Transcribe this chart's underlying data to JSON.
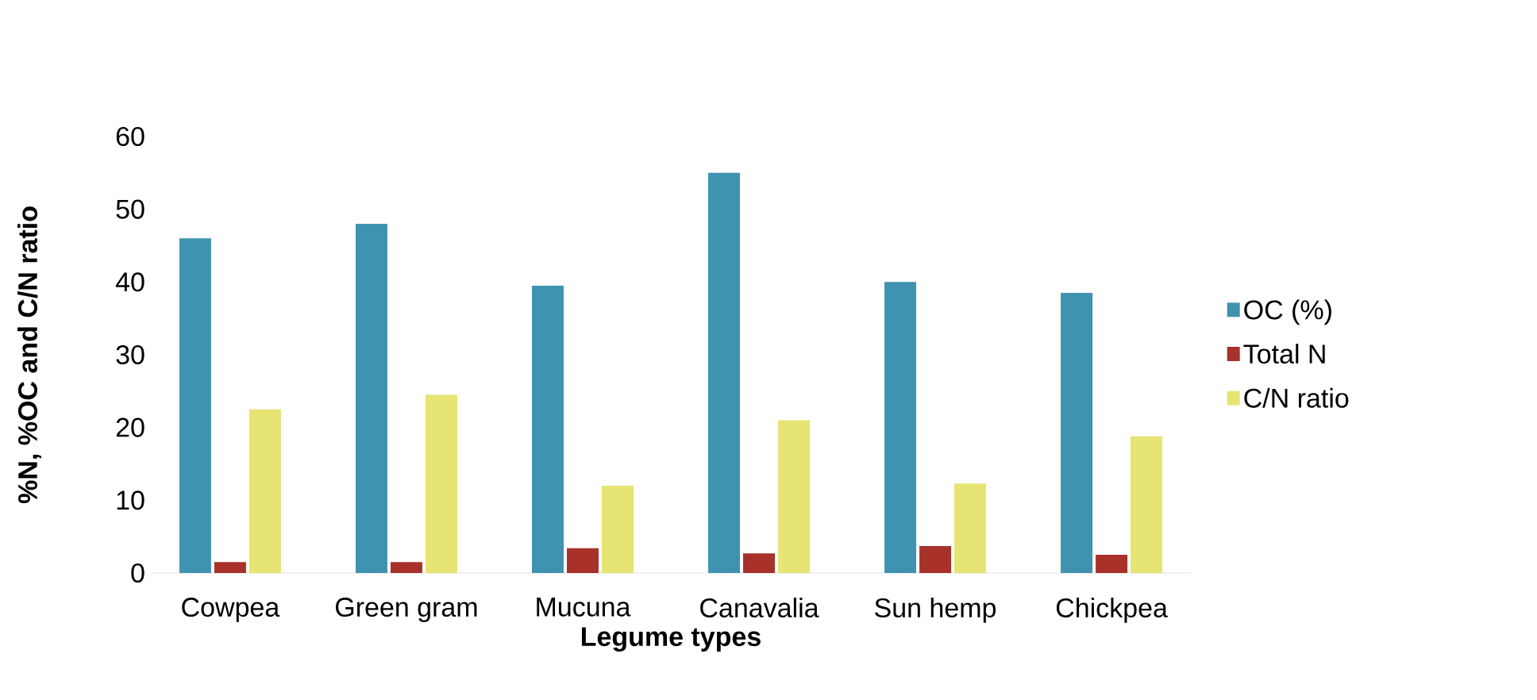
{
  "chart_data": {
    "type": "bar",
    "xlabel": "Legume types",
    "ylabel": "%N, %OC and C/N ratio",
    "categories": [
      "Cowpea",
      "Green gram",
      "Mucuna",
      "Canavalia",
      "Sun hemp",
      "Chickpea"
    ],
    "series": [
      {
        "name": "OC (%)",
        "color": "#3f93b0",
        "values": [
          46,
          48,
          39.5,
          55,
          40,
          38.5
        ]
      },
      {
        "name": "Total N",
        "color": "#a8322a",
        "values": [
          1.5,
          1.5,
          3.4,
          2.7,
          3.7,
          2.5
        ]
      },
      {
        "name": "C/N ratio",
        "color": "#e6e472",
        "values": [
          22.5,
          24.5,
          12,
          21,
          12.3,
          18.8
        ]
      }
    ],
    "ylim": [
      0,
      60
    ],
    "yticks": [
      0,
      10,
      20,
      30,
      40,
      50,
      60
    ],
    "legend": "right"
  }
}
